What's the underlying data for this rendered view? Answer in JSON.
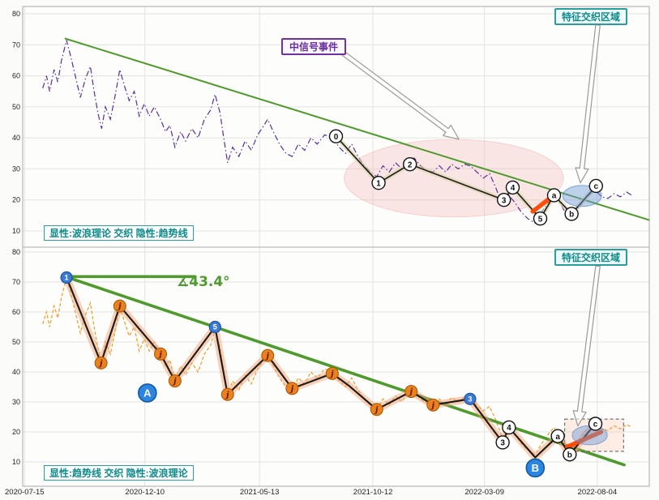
{
  "labels": {
    "top_caption": "显性:波浪理论 交织 隐性:趋势线",
    "bottom_caption": "显性:趋势线 交织 隐性:波浪理论",
    "region_top": "特征交织区域",
    "region_bottom": "特征交织区域",
    "signal": "中信号事件",
    "angle": "∡43.4°"
  },
  "colors": {
    "trend_green": "#4f9a2d",
    "price_purple": "#5a2d9e",
    "price_orange": "#f0a030",
    "wave_black": "#1a1a1a",
    "halo_top": "#d8d4a6",
    "halo_bottom": "#f4a274",
    "orange_marker": "#e8821e",
    "orange_marker_edge": "#a85400",
    "orange_marker_text": "#701500",
    "blue_marker": "#3a7bd5",
    "blue_marker_edge": "#1d4f9e",
    "big_blue": "#2a86e0",
    "big_blue_edge": "#11589f",
    "red_segment": "#ff4500",
    "pink_region": "#f2c4c4",
    "blue_region": "#6f9fd8",
    "grid": "#e3e3e0",
    "panel_border": "#aaaaaa",
    "axis_text": "#222222",
    "teal": "#0d8a8a",
    "purple_label": "#7030a0"
  },
  "chart_data": {
    "type": "line",
    "title": "",
    "x_labels": [
      "2020-07-15",
      "2020-12-10",
      "2021-05-13",
      "2021-10-12",
      "2022-03-09",
      "2022-08-04"
    ],
    "x_label_pos": [
      0.3,
      19.5,
      37.8,
      55.9,
      73.7,
      91.7
    ],
    "yticks": [
      10,
      20,
      30,
      40,
      50,
      60,
      70,
      80
    ],
    "ylim": [
      8,
      83
    ],
    "grid": true,
    "price": [
      [
        3.2,
        56
      ],
      [
        3.8,
        60
      ],
      [
        4.3,
        55
      ],
      [
        5,
        62
      ],
      [
        5.6,
        58
      ],
      [
        6.2,
        65
      ],
      [
        7,
        71.5
      ],
      [
        7.7,
        66
      ],
      [
        8.4,
        60
      ],
      [
        9.2,
        53
      ],
      [
        10,
        59
      ],
      [
        10.8,
        63
      ],
      [
        11.4,
        55
      ],
      [
        12,
        48
      ],
      [
        12.6,
        43
      ],
      [
        13.2,
        50
      ],
      [
        14,
        46
      ],
      [
        14.7,
        53
      ],
      [
        15.5,
        62
      ],
      [
        16.2,
        57
      ],
      [
        17,
        52
      ],
      [
        17.8,
        55
      ],
      [
        18.6,
        47
      ],
      [
        19.4,
        51
      ],
      [
        20.2,
        47
      ],
      [
        21,
        50
      ],
      [
        22,
        46
      ],
      [
        22.8,
        42
      ],
      [
        23.5,
        44
      ],
      [
        24.3,
        37
      ],
      [
        25.2,
        42
      ],
      [
        26,
        39
      ],
      [
        27,
        43
      ],
      [
        28,
        40
      ],
      [
        29,
        46
      ],
      [
        30,
        49
      ],
      [
        30.7,
        54
      ],
      [
        31.5,
        48
      ],
      [
        32,
        41
      ],
      [
        32.7,
        32
      ],
      [
        33.5,
        37
      ],
      [
        34.5,
        34
      ],
      [
        35.5,
        39
      ],
      [
        36.5,
        36
      ],
      [
        37.5,
        41
      ],
      [
        38.5,
        44
      ],
      [
        39.1,
        46
      ],
      [
        40,
        42
      ],
      [
        41,
        38
      ],
      [
        42,
        35
      ],
      [
        43,
        34
      ],
      [
        44,
        38
      ],
      [
        45,
        36
      ],
      [
        46,
        40
      ],
      [
        47,
        38
      ],
      [
        48.2,
        41
      ],
      [
        49.4,
        40
      ],
      [
        50.5,
        37
      ],
      [
        51.5,
        35
      ],
      [
        52.5,
        38
      ],
      [
        53.5,
        34
      ],
      [
        54.5,
        31
      ],
      [
        55.5,
        29
      ],
      [
        56.5,
        27.5
      ],
      [
        57.5,
        31
      ],
      [
        58.5,
        29
      ],
      [
        59.5,
        32
      ],
      [
        60.5,
        30
      ],
      [
        61.5,
        33
      ],
      [
        62.5,
        33.5
      ],
      [
        63.5,
        31
      ],
      [
        64.5,
        29.5
      ],
      [
        65.5,
        29
      ],
      [
        66.5,
        31
      ],
      [
        67.5,
        29
      ],
      [
        68.5,
        31.5
      ],
      [
        69.5,
        30
      ],
      [
        70.5,
        31.5
      ],
      [
        71.4,
        31
      ],
      [
        72.5,
        29
      ],
      [
        73.5,
        27
      ],
      [
        74.5,
        28.5
      ],
      [
        75.5,
        24
      ],
      [
        76.6,
        18
      ],
      [
        77.6,
        21.5
      ],
      [
        78.6,
        19
      ],
      [
        79.6,
        16
      ],
      [
        80.6,
        14
      ],
      [
        81.8,
        12.5
      ],
      [
        82.8,
        16
      ],
      [
        83.8,
        19
      ],
      [
        84.8,
        21.5
      ],
      [
        85.8,
        19
      ],
      [
        86.8,
        15
      ],
      [
        87.6,
        13.5
      ],
      [
        88.6,
        17
      ],
      [
        89.6,
        20
      ],
      [
        90.6,
        22
      ],
      [
        91.4,
        23
      ],
      [
        92.4,
        21
      ],
      [
        93.4,
        20.5
      ],
      [
        94.4,
        22
      ],
      [
        95.4,
        21
      ],
      [
        96.4,
        22.5
      ],
      [
        97.2,
        21.5
      ]
    ],
    "panels": [
      {
        "name": "wave-theory-panel",
        "price_style": "purple-dashdot",
        "trendlines": [
          [
            [
              6.8,
              72
            ],
            [
              100,
              13.5
            ]
          ]
        ],
        "wave": [
          {
            "x": 50.0,
            "y": 40.5,
            "label": "0",
            "style": "white"
          },
          {
            "x": 56.8,
            "y": 25.5,
            "label": "1",
            "style": "white"
          },
          {
            "x": 61.8,
            "y": 31.5,
            "label": "2",
            "style": "white"
          },
          {
            "x": 76.8,
            "y": 20.0,
            "label": "3",
            "style": "white"
          },
          {
            "x": 78.2,
            "y": 24.0,
            "label": "4",
            "style": "white"
          },
          {
            "x": 82.6,
            "y": 14.0,
            "label": "5",
            "style": "white"
          },
          {
            "x": 84.8,
            "y": 21.5,
            "label": "a",
            "style": "white"
          },
          {
            "x": 87.6,
            "y": 15.5,
            "label": "b",
            "style": "white"
          },
          {
            "x": 91.5,
            "y": 24.5,
            "label": "c",
            "style": "white"
          }
        ],
        "extra_markers": [],
        "red_segment": [
          [
            81.4,
            16.3
          ],
          [
            84.8,
            21.5
          ]
        ],
        "ellipses": [
          {
            "cx": 68.8,
            "cy": 27.0,
            "rx": 17.5,
            "ry": 12.5,
            "kind": "pink"
          },
          {
            "cx": 89.3,
            "cy": 21.3,
            "rx": 3.1,
            "ry": 3.4,
            "kind": "blue"
          }
        ],
        "arrows": [
          {
            "from": [
              51.2,
              67.2
            ],
            "to": [
              69.6,
              39.6
            ]
          },
          {
            "from": [
              91.8,
              76.4
            ],
            "to": [
              89.0,
              25.5
            ]
          }
        ]
      },
      {
        "name": "trendline-panel",
        "price_style": "orange-dash",
        "trendlines": [
          [
            [
              6.8,
              71.8
            ],
            [
              96,
              9
            ]
          ],
          [
            [
              6.8,
              71.8
            ],
            [
              27.5,
              71.8
            ]
          ]
        ],
        "wave": [
          {
            "x": 7.0,
            "y": 71.5,
            "label": "1",
            "style": "blue"
          },
          {
            "x": 12.5,
            "y": 43.0,
            "label": "j",
            "style": "orange"
          },
          {
            "x": 15.5,
            "y": 62.0,
            "label": "j",
            "style": "orange"
          },
          {
            "x": 22.0,
            "y": 46.0,
            "label": "j",
            "style": "orange"
          },
          {
            "x": 24.3,
            "y": 37.0,
            "label": "j",
            "style": "orange"
          },
          {
            "x": 30.7,
            "y": 55.0,
            "label": "5",
            "style": "blue"
          },
          {
            "x": 32.7,
            "y": 32.5,
            "label": "j",
            "style": "orange"
          },
          {
            "x": 39.1,
            "y": 45.5,
            "label": "j",
            "style": "orange"
          },
          {
            "x": 43.0,
            "y": 34.5,
            "label": "j",
            "style": "orange"
          },
          {
            "x": 49.4,
            "y": 39.5,
            "label": "j",
            "style": "orange"
          },
          {
            "x": 52.0,
            "y": 35.5,
            "label": "",
            "style": "none"
          },
          {
            "x": 56.5,
            "y": 27.5,
            "label": "j",
            "style": "orange"
          },
          {
            "x": 62.0,
            "y": 33.5,
            "label": "j",
            "style": "orange"
          },
          {
            "x": 65.5,
            "y": 29.0,
            "label": "j",
            "style": "orange"
          },
          {
            "x": 71.4,
            "y": 31.0,
            "label": "3",
            "style": "blue"
          },
          {
            "x": 76.6,
            "y": 16.5,
            "label": "3",
            "style": "white"
          },
          {
            "x": 77.6,
            "y": 21.5,
            "label": "4",
            "style": "white"
          },
          {
            "x": 81.8,
            "y": 11.5,
            "label": "",
            "style": "none"
          },
          {
            "x": 85.4,
            "y": 18.6,
            "label": "a",
            "style": "white"
          },
          {
            "x": 87.3,
            "y": 12.5,
            "label": "b",
            "style": "white"
          },
          {
            "x": 91.4,
            "y": 22.7,
            "label": "c",
            "style": "white"
          }
        ],
        "extra_markers": [
          {
            "x": 19.9,
            "y": 33.0,
            "label": "A",
            "style": "bigblue"
          },
          {
            "x": 81.8,
            "y": 8.0,
            "label": "B",
            "style": "bigblue"
          }
        ],
        "red_segment": [
          [
            86.9,
            15.0
          ],
          [
            92.3,
            20.0
          ]
        ],
        "dash_rect": [
          86.5,
          24.3,
          95.9,
          13.5
        ],
        "ellipses": [
          {
            "cx": 90.5,
            "cy": 18.9,
            "rx": 2.8,
            "ry": 3.2,
            "kind": "blue"
          }
        ],
        "arrows": [
          {
            "from": [
              91.8,
              75.3
            ],
            "to": [
              88.6,
              22.0
            ]
          }
        ]
      }
    ]
  }
}
